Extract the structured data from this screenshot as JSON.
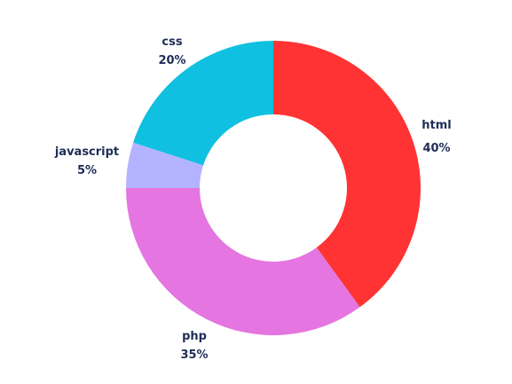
{
  "chart_data": {
    "type": "pie",
    "hole": true,
    "title": "",
    "categories": [
      "html",
      "php",
      "javascript",
      "css"
    ],
    "values": [
      40,
      35,
      5,
      20
    ],
    "value_labels": [
      "40%",
      "35%",
      "5%",
      "20%"
    ],
    "colors": [
      "#ff3333",
      "#e575e0",
      "#b3b3ff",
      "#10c0e0"
    ],
    "legend": "none"
  }
}
